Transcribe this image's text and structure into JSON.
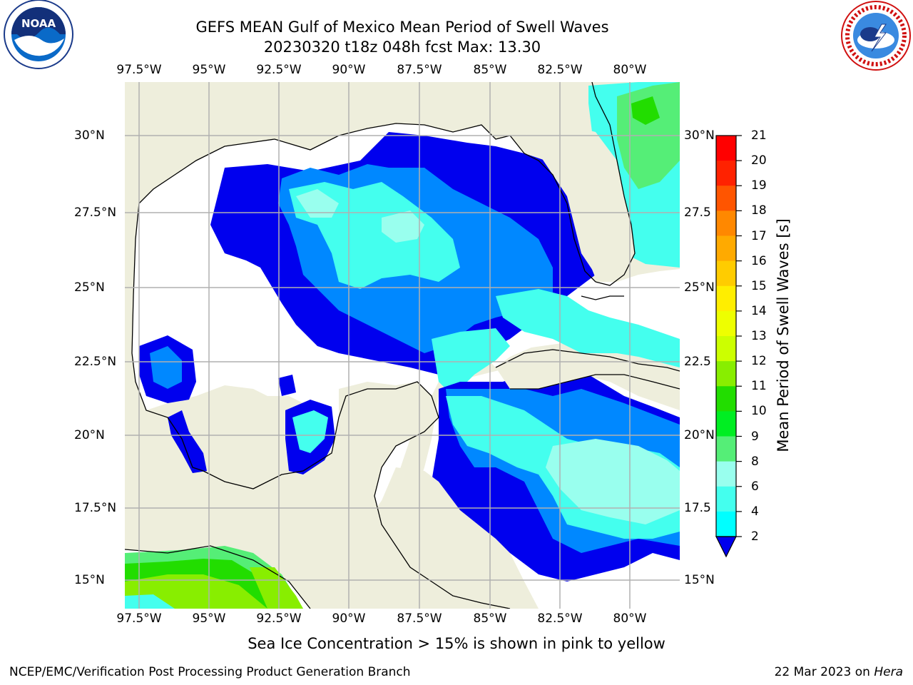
{
  "header": {
    "title": "GEFS MEAN Gulf of Mexico Mean Period of Swell Waves",
    "subtitle": "20230320 t18z 048h fcst   Max: 13.30"
  },
  "map": {
    "lon_ticks": [
      "97.5°W",
      "95°W",
      "92.5°W",
      "90°W",
      "87.5°W",
      "85°W",
      "82.5°W",
      "80°W"
    ],
    "lat_ticks_left": [
      "30°N",
      "27.5°N",
      "25°N",
      "22.5°N",
      "20°N",
      "17.5°N",
      "15°N"
    ],
    "lat_ticks_right": [
      "30°N",
      "27.5",
      "25°N",
      "22.5",
      "20°N",
      "17.5",
      "15°N"
    ],
    "extent": {
      "lon_min": -98.0,
      "lon_max": -78.3,
      "lat_min": 14.0,
      "lat_max": 31.8
    },
    "land_color": "#eeeedc",
    "ocean_color": "#ffffff"
  },
  "colorbar": {
    "label": "Mean Period of Swell Waves [s]",
    "ticks": [
      "21",
      "20",
      "19",
      "18",
      "17",
      "16",
      "15",
      "14",
      "13",
      "12",
      "11",
      "10",
      "9",
      "8",
      "6",
      "4",
      "2"
    ],
    "colors": [
      "#ff0000",
      "#ff2200",
      "#ff5500",
      "#ff8800",
      "#ffaa00",
      "#ffcc00",
      "#ffee00",
      "#eeff00",
      "#ccff00",
      "#88ee00",
      "#22dd00",
      "#00ee22",
      "#55ee77",
      "#99ffee",
      "#44ffee",
      "#00ffff",
      "#0088ff",
      "#0000ee"
    ]
  },
  "footer": {
    "note": "Sea Ice Concentration > 15% is shown in pink to yellow",
    "credit": "NCEP/EMC/Verification Post Processing Product Generation Branch",
    "date": "22 Mar 2023 on ",
    "machine": "Hera"
  },
  "logos": {
    "noaa": {
      "text": "NOAA",
      "icon": "noaa-logo-icon"
    },
    "nws": {
      "icon": "nws-logo-icon"
    }
  }
}
